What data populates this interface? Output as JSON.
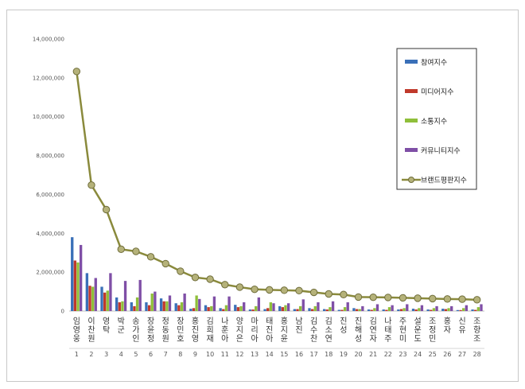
{
  "chart_data": {
    "type": "bar",
    "title": "",
    "xlabel": "",
    "ylabel": "",
    "ylim": [
      0,
      14000000
    ],
    "yticks": [
      0,
      2000000,
      4000000,
      6000000,
      8000000,
      10000000,
      12000000,
      14000000
    ],
    "ytick_labels": [
      "0",
      "2,000,000",
      "4,000,000",
      "6,000,000",
      "8,000,000",
      "10,000,000",
      "12,000,000",
      "14,000,000"
    ],
    "grid": false,
    "legend_position": "top-right",
    "categories": [
      "임영웅",
      "이찬원",
      "영탁",
      "박군",
      "송가인",
      "장윤정",
      "정동원",
      "장민호",
      "홍진영",
      "김희재",
      "나훈아",
      "양지은",
      "마리아",
      "태진아",
      "홍지윤",
      "남진",
      "김수찬",
      "김소연",
      "진성",
      "진해성",
      "김연자",
      "나태주",
      "주현미",
      "설운도",
      "조정민",
      "홍자",
      "신유",
      "조항조"
    ],
    "category_numbers": [
      "1",
      "2",
      "3",
      "4",
      "5",
      "6",
      "7",
      "8",
      "9",
      "10",
      "11",
      "12",
      "13",
      "14",
      "15",
      "16",
      "17",
      "18",
      "19",
      "20",
      "21",
      "22",
      "23",
      "24",
      "25",
      "26",
      "27",
      "28"
    ],
    "series": [
      {
        "name": "참여지수",
        "type": "bar",
        "color": "#3a70b8",
        "values": [
          3800000,
          1950000,
          1250000,
          700000,
          450000,
          450000,
          650000,
          400000,
          120000,
          300000,
          150000,
          320000,
          80000,
          100000,
          250000,
          100000,
          150000,
          100000,
          60000,
          150000,
          80000,
          80000,
          80000,
          120000,
          80000,
          120000,
          50000,
          80000
        ]
      },
      {
        "name": "미디어지수",
        "type": "bar",
        "color": "#c0392b",
        "values": [
          2600000,
          1300000,
          950000,
          450000,
          250000,
          300000,
          500000,
          300000,
          150000,
          200000,
          100000,
          200000,
          80000,
          150000,
          200000,
          100000,
          100000,
          80000,
          60000,
          100000,
          60000,
          60000,
          100000,
          80000,
          60000,
          100000,
          50000,
          60000
        ]
      },
      {
        "name": "소통지수",
        "type": "bar",
        "color": "#8fbf3a",
        "values": [
          2500000,
          1250000,
          1050000,
          500000,
          700000,
          900000,
          500000,
          450000,
          800000,
          250000,
          300000,
          250000,
          250000,
          450000,
          300000,
          250000,
          250000,
          200000,
          200000,
          100000,
          150000,
          200000,
          150000,
          150000,
          150000,
          150000,
          150000,
          200000
        ]
      },
      {
        "name": "커뮤니티지수",
        "type": "bar",
        "color": "#7f4fa6",
        "values": [
          3400000,
          1700000,
          1950000,
          1550000,
          1600000,
          1000000,
          800000,
          900000,
          620000,
          750000,
          750000,
          450000,
          700000,
          400000,
          400000,
          600000,
          450000,
          500000,
          450000,
          250000,
          350000,
          300000,
          350000,
          300000,
          250000,
          250000,
          300000,
          350000
        ]
      },
      {
        "name": "브랜드평판지수",
        "type": "line",
        "color": "#8a8a3c",
        "values": [
          12330000,
          6480000,
          5220000,
          3180000,
          3070000,
          2790000,
          2440000,
          2050000,
          1730000,
          1640000,
          1360000,
          1230000,
          1120000,
          1090000,
          1070000,
          1050000,
          960000,
          880000,
          850000,
          720000,
          710000,
          700000,
          680000,
          660000,
          640000,
          620000,
          610000,
          580000
        ]
      }
    ]
  }
}
